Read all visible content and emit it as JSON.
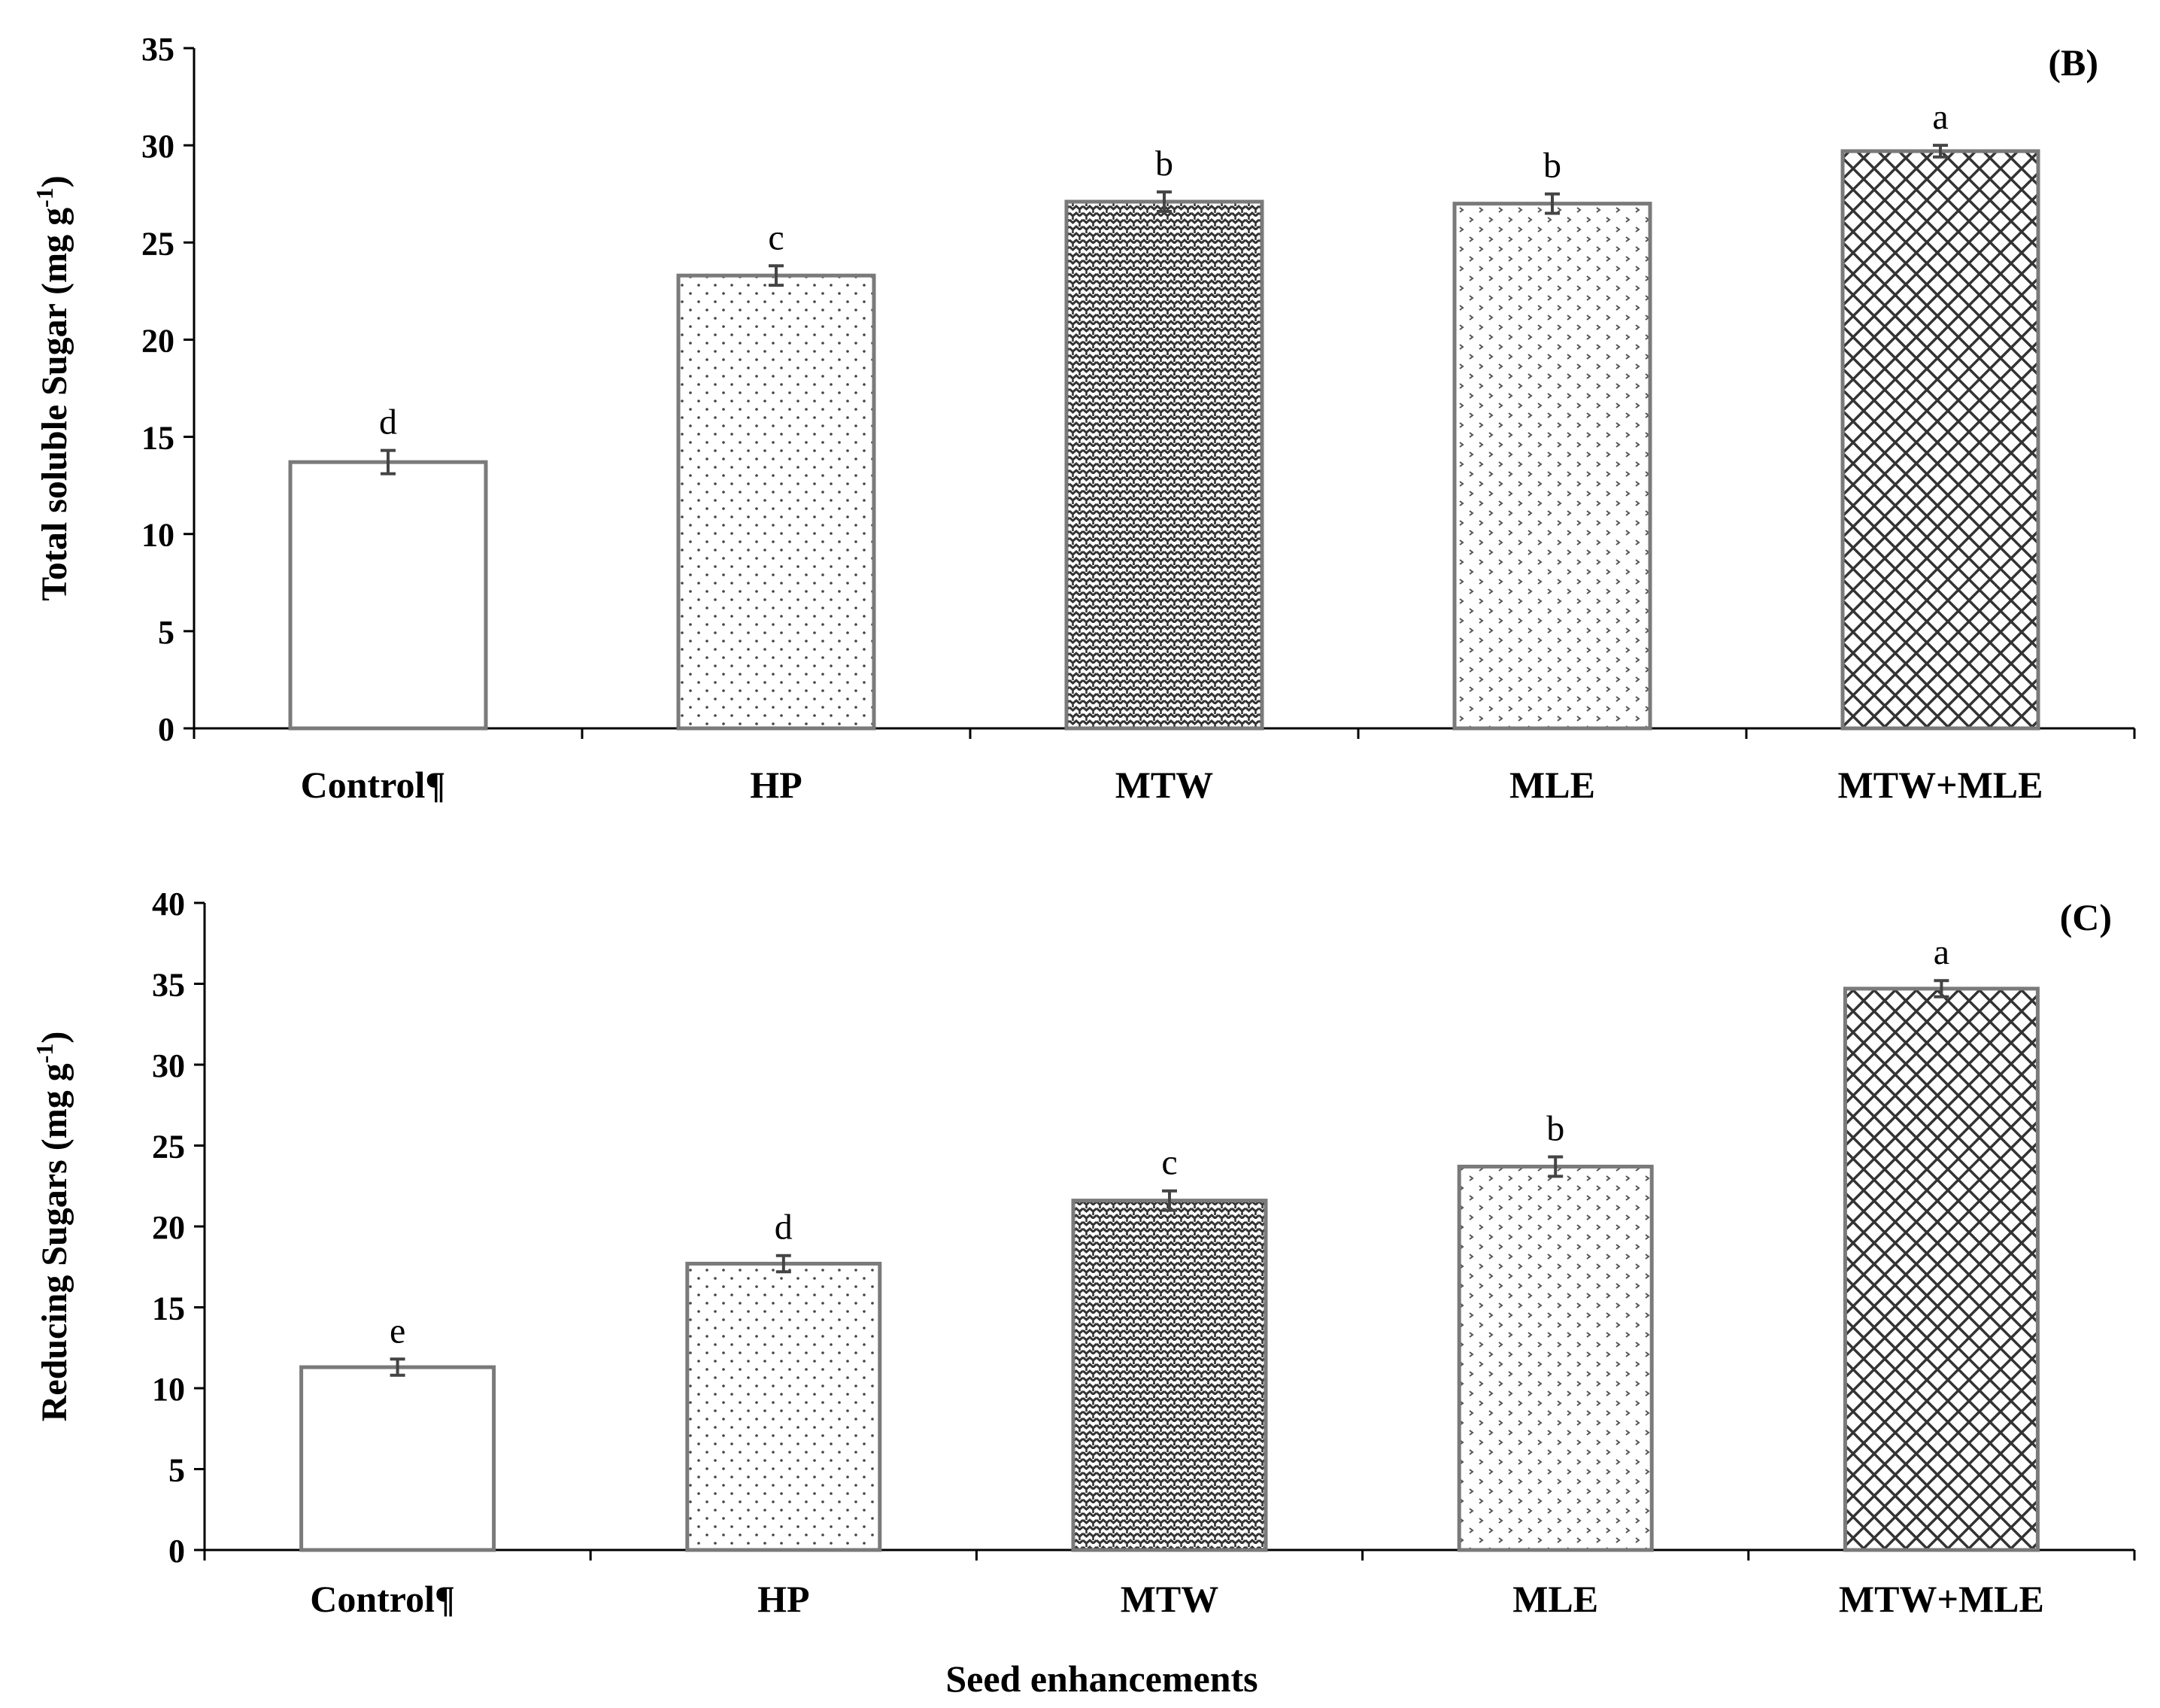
{
  "figure": {
    "xlabel": "Seed enhancements"
  },
  "chart_data": [
    {
      "type": "bar",
      "panel_label": "(B)",
      "ylabel": "Total soluble Sugar (mg g",
      "ylabel_sup": "-1",
      "ylabel_close": ")",
      "categories": [
        "Control¶",
        "HP",
        "MTW",
        "MLE",
        "MTW+MLE"
      ],
      "values": [
        13.7,
        23.3,
        27.1,
        27.0,
        29.7
      ],
      "errors": [
        0.6,
        0.5,
        0.5,
        0.5,
        0.3
      ],
      "letters": [
        "d",
        "c",
        "b",
        "b",
        "a"
      ],
      "patterns": [
        "none",
        "dots",
        "zigzag",
        "chevron",
        "crosshatch"
      ],
      "ylim": [
        0,
        35
      ],
      "yticks": [
        0,
        5,
        10,
        15,
        20,
        25,
        30,
        35
      ],
      "grid": false
    },
    {
      "type": "bar",
      "panel_label": "(C)",
      "ylabel": "Reducing Sugars (mg g",
      "ylabel_sup": "-1",
      "ylabel_close": ")",
      "categories": [
        "Control¶",
        "HP",
        "MTW",
        "MLE",
        "MTW+MLE"
      ],
      "values": [
        11.3,
        17.7,
        21.6,
        23.7,
        34.7
      ],
      "errors": [
        0.5,
        0.5,
        0.6,
        0.6,
        0.5
      ],
      "letters": [
        "e",
        "d",
        "c",
        "b",
        "a"
      ],
      "patterns": [
        "none",
        "dots",
        "zigzag",
        "chevron",
        "crosshatch"
      ],
      "ylim": [
        0,
        40
      ],
      "yticks": [
        0,
        5,
        10,
        15,
        20,
        25,
        30,
        35,
        40
      ],
      "grid": false
    }
  ],
  "colors": {
    "bar_stroke": "#7a7a7a",
    "text": "#000000",
    "axis": "#000000",
    "background": "#ffffff"
  }
}
